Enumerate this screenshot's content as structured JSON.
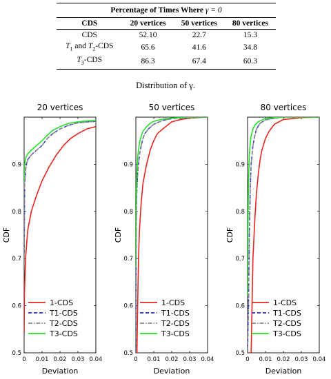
{
  "table": {
    "caption_prefix": "Percentage of Times Where ",
    "caption_symbol": "γ = 0",
    "headers": [
      "CDS",
      "20 vertices",
      "50 vertices",
      "80 vertices"
    ],
    "rows": [
      {
        "name": "CDS",
        "values": [
          "52.10",
          "22.7",
          "15.3"
        ]
      },
      {
        "name": "T1 and T2-CDS",
        "values": [
          "65.6",
          "41.6",
          "34.8"
        ]
      },
      {
        "name": "T3-CDS",
        "values": [
          "86.3",
          "67.4",
          "60.3"
        ]
      }
    ]
  },
  "figure_caption": "Distribution of γ.",
  "chart_data": [
    {
      "type": "line",
      "title": "20 vertices",
      "xlabel": "Deviation",
      "ylabel": "CDF",
      "xlim": [
        0,
        0.04
      ],
      "ylim": [
        0.5,
        1.0
      ],
      "xticks": [
        "0",
        "0.01",
        "0.02",
        "0.03",
        "0.04"
      ],
      "yticks": [
        "0.5",
        "0.6",
        "0.7",
        "0.8",
        "0.9"
      ],
      "legend": "bottom-left",
      "series": [
        {
          "name": "1-CDS",
          "color": "#e8231e",
          "dash": "solid",
          "x": [
            0,
            0.0002,
            0.0008,
            0.002,
            0.004,
            0.007,
            0.01,
            0.014,
            0.018,
            0.022,
            0.026,
            0.03,
            0.035,
            0.04
          ],
          "y": [
            0.54,
            0.63,
            0.7,
            0.76,
            0.8,
            0.835,
            0.865,
            0.895,
            0.92,
            0.94,
            0.955,
            0.965,
            0.975,
            0.98
          ]
        },
        {
          "name": "T1-CDS",
          "color": "#1f2fe0",
          "dash": "dashed",
          "x": [
            0,
            0.0003,
            0.001,
            0.002,
            0.004,
            0.007,
            0.01,
            0.013,
            0.016,
            0.02,
            0.025,
            0.03,
            0.035,
            0.04
          ],
          "y": [
            0.7,
            0.86,
            0.895,
            0.91,
            0.92,
            0.93,
            0.94,
            0.955,
            0.965,
            0.975,
            0.983,
            0.988,
            0.99,
            0.991
          ]
        },
        {
          "name": "T2-CDS",
          "color": "#8a8a8a",
          "dash": "dashdot",
          "x": [
            0,
            0.0003,
            0.001,
            0.002,
            0.004,
            0.007,
            0.01,
            0.013,
            0.016,
            0.02,
            0.025,
            0.03,
            0.035,
            0.04
          ],
          "y": [
            0.7,
            0.86,
            0.895,
            0.91,
            0.92,
            0.93,
            0.94,
            0.955,
            0.965,
            0.975,
            0.983,
            0.988,
            0.99,
            0.991
          ]
        },
        {
          "name": "T3-CDS",
          "color": "#22e022",
          "dash": "solid",
          "x": [
            0,
            0.0003,
            0.001,
            0.002,
            0.004,
            0.007,
            0.01,
            0.013,
            0.016,
            0.02,
            0.025,
            0.03,
            0.035,
            0.04
          ],
          "y": [
            0.865,
            0.9,
            0.915,
            0.922,
            0.93,
            0.94,
            0.95,
            0.962,
            0.972,
            0.98,
            0.987,
            0.99,
            0.992,
            0.993
          ]
        }
      ]
    },
    {
      "type": "line",
      "title": "50 vertices",
      "xlabel": "Deviation",
      "ylabel": "CDF",
      "xlim": [
        0,
        0.04
      ],
      "ylim": [
        0.5,
        1.0
      ],
      "xticks": [
        "0",
        "0.01",
        "0.02",
        "0.03",
        "0.04"
      ],
      "yticks": [
        "0.5",
        "0.6",
        "0.7",
        "0.8",
        "0.9"
      ],
      "legend": "bottom-left",
      "series": [
        {
          "name": "1-CDS",
          "color": "#e8231e",
          "dash": "solid",
          "x": [
            0,
            0.0006,
            0.001,
            0.0015,
            0.002,
            0.003,
            0.004,
            0.005,
            0.006,
            0.008,
            0.01,
            0.012,
            0.015,
            0.02,
            0.025,
            0.03,
            0.04
          ],
          "y": [
            0.5,
            0.5,
            0.6,
            0.7,
            0.76,
            0.82,
            0.86,
            0.88,
            0.9,
            0.93,
            0.95,
            0.965,
            0.975,
            0.99,
            0.995,
            0.998,
            1.0
          ]
        },
        {
          "name": "T1-CDS",
          "color": "#1f2fe0",
          "dash": "dashed",
          "x": [
            0,
            0.0002,
            0.0005,
            0.001,
            0.002,
            0.003,
            0.004,
            0.005,
            0.007,
            0.01,
            0.015,
            0.02,
            0.03,
            0.04
          ],
          "y": [
            0.5,
            0.75,
            0.84,
            0.88,
            0.92,
            0.94,
            0.955,
            0.965,
            0.975,
            0.985,
            0.993,
            0.997,
            0.999,
            1.0
          ]
        },
        {
          "name": "T2-CDS",
          "color": "#8a8a8a",
          "dash": "dashdot",
          "x": [
            0,
            0.0002,
            0.0005,
            0.001,
            0.002,
            0.003,
            0.004,
            0.005,
            0.007,
            0.01,
            0.015,
            0.02,
            0.03,
            0.04
          ],
          "y": [
            0.5,
            0.75,
            0.84,
            0.88,
            0.92,
            0.94,
            0.955,
            0.965,
            0.975,
            0.985,
            0.993,
            0.997,
            0.999,
            1.0
          ]
        },
        {
          "name": "T3-CDS",
          "color": "#22e022",
          "dash": "solid",
          "x": [
            0,
            0.0002,
            0.0005,
            0.001,
            0.002,
            0.003,
            0.004,
            0.006,
            0.008,
            0.01,
            0.015,
            0.02,
            0.03,
            0.04
          ],
          "y": [
            0.68,
            0.82,
            0.88,
            0.915,
            0.945,
            0.96,
            0.97,
            0.98,
            0.987,
            0.991,
            0.996,
            0.998,
            1.0,
            1.0
          ]
        }
      ]
    },
    {
      "type": "line",
      "title": "80 vertices",
      "xlabel": "Deviation",
      "ylabel": "CDF",
      "xlim": [
        0,
        0.04
      ],
      "ylim": [
        0.5,
        1.0
      ],
      "xticks": [
        "0",
        "0.01",
        "0.02",
        "0.03",
        "0.04"
      ],
      "yticks": [
        "0.5",
        "0.6",
        "0.7",
        "0.8",
        "0.9"
      ],
      "legend": "bottom-left",
      "series": [
        {
          "name": "1-CDS",
          "color": "#e8231e",
          "dash": "solid",
          "x": [
            0,
            0.002,
            0.0025,
            0.003,
            0.004,
            0.005,
            0.006,
            0.007,
            0.008,
            0.01,
            0.012,
            0.015,
            0.02,
            0.03,
            0.04
          ],
          "y": [
            0.5,
            0.5,
            0.6,
            0.7,
            0.78,
            0.84,
            0.88,
            0.91,
            0.93,
            0.955,
            0.97,
            0.985,
            0.995,
            0.999,
            1.0
          ]
        },
        {
          "name": "T1-CDS",
          "color": "#1f2fe0",
          "dash": "dashed",
          "x": [
            0,
            0.0005,
            0.001,
            0.0015,
            0.002,
            0.003,
            0.004,
            0.005,
            0.007,
            0.01,
            0.015,
            0.02,
            0.04
          ],
          "y": [
            0.5,
            0.6,
            0.75,
            0.85,
            0.9,
            0.94,
            0.96,
            0.975,
            0.987,
            0.994,
            0.998,
            1.0,
            1.0
          ]
        },
        {
          "name": "T2-CDS",
          "color": "#8a8a8a",
          "dash": "dashdot",
          "x": [
            0,
            0.0005,
            0.001,
            0.0015,
            0.002,
            0.003,
            0.004,
            0.005,
            0.007,
            0.01,
            0.015,
            0.02,
            0.04
          ],
          "y": [
            0.5,
            0.6,
            0.75,
            0.85,
            0.9,
            0.94,
            0.96,
            0.975,
            0.987,
            0.994,
            0.998,
            1.0,
            1.0
          ]
        },
        {
          "name": "T3-CDS",
          "color": "#22e022",
          "dash": "solid",
          "x": [
            0,
            0.0002,
            0.0005,
            0.001,
            0.0015,
            0.002,
            0.003,
            0.004,
            0.006,
            0.008,
            0.01,
            0.015,
            0.02,
            0.04
          ],
          "y": [
            0.62,
            0.75,
            0.86,
            0.92,
            0.945,
            0.96,
            0.975,
            0.983,
            0.99,
            0.994,
            0.997,
            0.999,
            1.0,
            1.0
          ]
        }
      ]
    }
  ]
}
